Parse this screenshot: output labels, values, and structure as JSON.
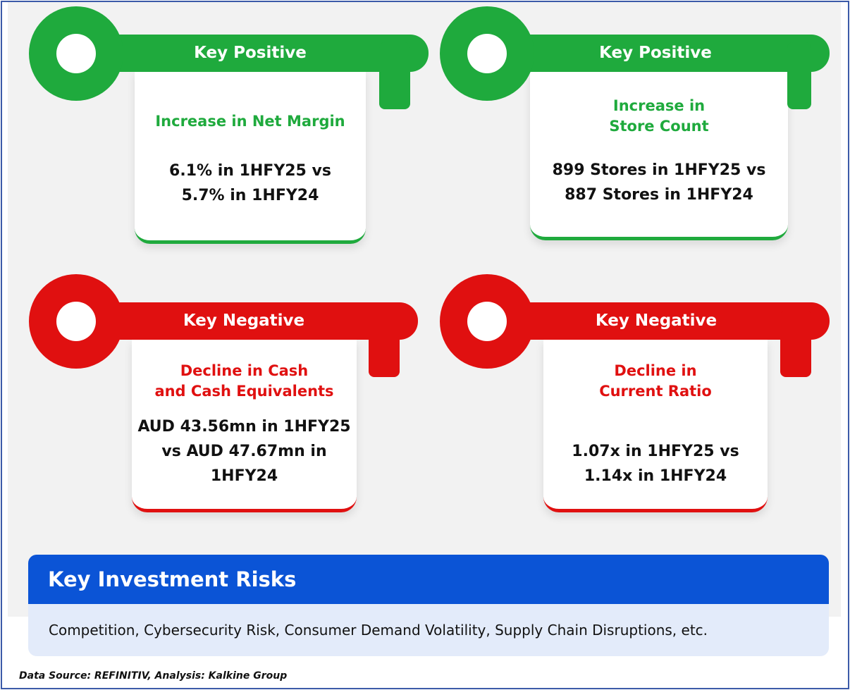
{
  "colors": {
    "positive": "#1faa3d",
    "negative": "#e01010",
    "risk_header": "#0b54d6",
    "risk_body": "#e3ebfa"
  },
  "cards": [
    {
      "type": "positive",
      "label": "Key Positive",
      "title_lines": [
        "Increase in Net Margin"
      ],
      "value_lines": [
        "6.1% in 1HFY25 vs",
        "5.7% in 1HFY24"
      ]
    },
    {
      "type": "positive",
      "label": "Key Positive",
      "title_lines": [
        "Increase in",
        "Store Count"
      ],
      "value_lines": [
        "899 Stores in 1HFY25 vs",
        "887 Stores in 1HFY24"
      ]
    },
    {
      "type": "negative",
      "label": "Key Negative",
      "title_lines": [
        "Decline in Cash",
        "and Cash Equivalents"
      ],
      "value_lines": [
        "AUD 43.56mn in 1HFY25",
        "vs AUD 47.67mn in",
        "1HFY24"
      ]
    },
    {
      "type": "negative",
      "label": "Key Negative",
      "title_lines": [
        "Decline in",
        "Current Ratio"
      ],
      "value_lines": [
        "1.07x in 1HFY25 vs",
        "1.14x in 1HFY24"
      ]
    }
  ],
  "risks": {
    "title": "Key Investment Risks",
    "text": "Competition, Cybersecurity Risk, Consumer Demand Volatility, Supply Chain Disruptions, etc."
  },
  "source": "Data Source: REFINITIV, Analysis: Kalkine Group"
}
